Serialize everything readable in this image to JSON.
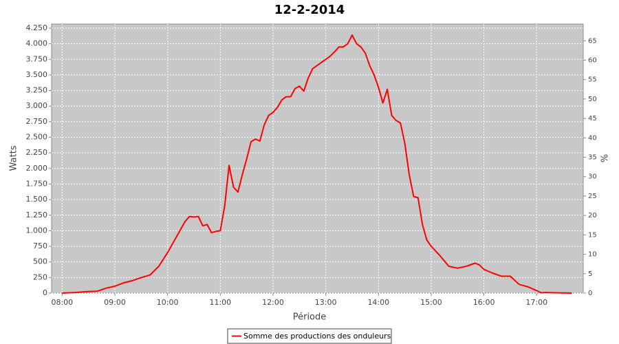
{
  "chart_data": {
    "type": "line",
    "title": "12-2-2014",
    "xlabel": "Période",
    "ylabel": "Watts",
    "y2label": "%",
    "x": [
      "08:00",
      "08:15",
      "08:30",
      "08:40",
      "08:50",
      "09:00",
      "09:10",
      "09:20",
      "09:30",
      "09:40",
      "09:50",
      "10:00",
      "10:10",
      "10:20",
      "10:25",
      "10:30",
      "10:35",
      "10:40",
      "10:45",
      "10:50",
      "10:55",
      "11:00",
      "11:05",
      "11:10",
      "11:15",
      "11:20",
      "11:25",
      "11:30",
      "11:35",
      "11:40",
      "11:45",
      "11:50",
      "11:55",
      "12:00",
      "12:05",
      "12:10",
      "12:15",
      "12:20",
      "12:25",
      "12:30",
      "12:35",
      "12:40",
      "12:45",
      "12:50",
      "12:55",
      "13:00",
      "13:05",
      "13:10",
      "13:15",
      "13:20",
      "13:25",
      "13:30",
      "13:35",
      "13:40",
      "13:45",
      "13:50",
      "13:55",
      "14:00",
      "14:05",
      "14:10",
      "14:15",
      "14:20",
      "14:25",
      "14:30",
      "14:35",
      "14:40",
      "14:45",
      "14:50",
      "14:55",
      "15:00",
      "15:10",
      "15:20",
      "15:30",
      "15:40",
      "15:50",
      "15:55",
      "16:00",
      "16:10",
      "16:20",
      "16:30",
      "16:40",
      "16:50",
      "17:00",
      "17:05",
      "17:10",
      "17:20",
      "17:40"
    ],
    "series": [
      {
        "name": "Somme des productions des onduleurs",
        "color": "#ff0000",
        "values": [
          0,
          10,
          25,
          30,
          80,
          110,
          165,
          200,
          250,
          290,
          430,
          650,
          900,
          1150,
          1230,
          1220,
          1230,
          1080,
          1100,
          970,
          990,
          1000,
          1400,
          2050,
          1700,
          1620,
          1900,
          2150,
          2430,
          2470,
          2440,
          2700,
          2850,
          2900,
          2980,
          3100,
          3150,
          3150,
          3280,
          3320,
          3240,
          3450,
          3600,
          3650,
          3700,
          3750,
          3800,
          3870,
          3950,
          3950,
          4000,
          4140,
          4000,
          3950,
          3850,
          3650,
          3500,
          3300,
          3050,
          3270,
          2850,
          2770,
          2730,
          2400,
          1900,
          1550,
          1530,
          1100,
          850,
          750,
          600,
          430,
          400,
          430,
          480,
          450,
          380,
          320,
          270,
          270,
          140,
          100,
          40,
          5,
          10,
          5,
          0
        ]
      }
    ],
    "xlim": [
      "07:48",
      "17:53"
    ],
    "xticks": [
      "08:00",
      "09:00",
      "10:00",
      "11:00",
      "12:00",
      "13:00",
      "14:00",
      "15:00",
      "16:00",
      "17:00"
    ],
    "ylim": [
      0,
      4316
    ],
    "yticks": [
      0,
      250,
      500,
      750,
      {
        "value": 1000,
        "label": "1.000"
      },
      {
        "value": 1250,
        "label": "1.250"
      },
      {
        "value": 1500,
        "label": "1.500"
      },
      {
        "value": 1750,
        "label": "1.750"
      },
      {
        "value": 2000,
        "label": "2.000"
      },
      {
        "value": 2250,
        "label": "2.250"
      },
      {
        "value": 2500,
        "label": "2.500"
      },
      {
        "value": 2750,
        "label": "2.750"
      },
      {
        "value": 3000,
        "label": "3.000"
      },
      {
        "value": 3250,
        "label": "3.250"
      },
      {
        "value": 3500,
        "label": "3.500"
      },
      {
        "value": 3750,
        "label": "3.750"
      },
      {
        "value": 4000,
        "label": "4.000"
      },
      {
        "value": 4250,
        "label": "4.250"
      }
    ],
    "y2lim": [
      0,
      69.3
    ],
    "y2ticks": [
      0,
      5,
      10,
      15,
      20,
      25,
      30,
      35,
      40,
      45,
      50,
      55,
      60,
      65
    ],
    "grid": true,
    "legend": "bottom",
    "plot_background": "#c8c8c8"
  }
}
